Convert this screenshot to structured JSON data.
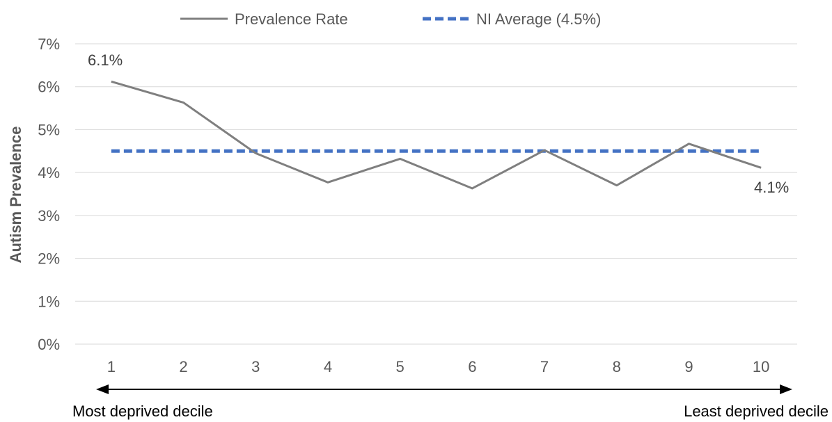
{
  "chart_data": {
    "type": "line",
    "categories": [
      "1",
      "2",
      "3",
      "4",
      "5",
      "6",
      "7",
      "8",
      "9",
      "10"
    ],
    "series": [
      {
        "name": "Prevalence Rate",
        "values": [
          6.12,
          5.63,
          4.45,
          3.77,
          4.32,
          3.63,
          4.52,
          3.7,
          4.67,
          4.11
        ],
        "color": "#7f7f7f",
        "style": "solid"
      },
      {
        "name": "NI Average (4.5%)",
        "values": [
          4.5,
          4.5,
          4.5,
          4.5,
          4.5,
          4.5,
          4.5,
          4.5,
          4.5,
          4.5
        ],
        "color": "#4472c4",
        "style": "dashed"
      }
    ],
    "ylabel": "Autism Prevalence",
    "ylim": [
      0,
      7
    ],
    "yticks": [
      "0%",
      "1%",
      "2%",
      "3%",
      "4%",
      "5%",
      "6%",
      "7%"
    ],
    "grid": true,
    "legend": "top-center",
    "data_labels": {
      "first": "6.1%",
      "last": "4.1%"
    },
    "arrow_captions": {
      "left": "Most deprived decile",
      "right": "Least deprived decile"
    }
  }
}
